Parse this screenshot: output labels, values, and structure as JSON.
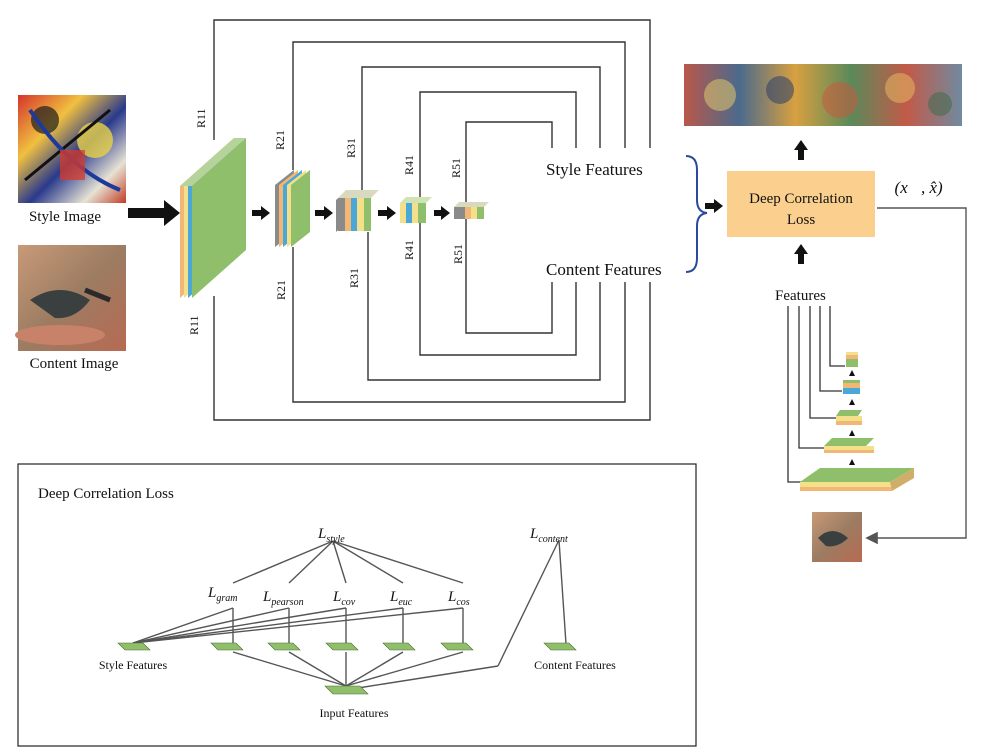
{
  "inputs": {
    "style_image_label": "Style Image",
    "content_image_label": "Content Image"
  },
  "layer_tags": {
    "r11_top": "R11",
    "r21_top": "R21",
    "r31_top": "R31",
    "r41_top": "R41",
    "r51_top": "R51",
    "r11_bot": "R11",
    "r21_bot": "R21",
    "r31_bot": "R31",
    "r41_bot": "R41",
    "r51_bot": "R51"
  },
  "features": {
    "style": "Style Features",
    "content": "Content Features",
    "generator": "Features"
  },
  "loss_box": {
    "line1": "Deep Correlation",
    "line2": "Loss",
    "formula": "ℒ(x⃗, x̂)"
  },
  "panel": {
    "title": "Deep Correlation Loss",
    "l_style": "L",
    "l_style_sub": "style",
    "l_content": "L",
    "l_content_sub": "content",
    "terms": [
      {
        "base": "L",
        "sub": "gram"
      },
      {
        "base": "L",
        "sub": "pearson"
      },
      {
        "base": "L",
        "sub": "cov"
      },
      {
        "base": "L",
        "sub": "euc"
      },
      {
        "base": "L",
        "sub": "cos"
      }
    ],
    "style_features": "Style Features",
    "content_features": "Content Features",
    "input_features": "Input Features"
  },
  "colors": {
    "green": "#8fbf6a",
    "yellow": "#f4e08a",
    "orange": "#f2b774",
    "blue": "#4aa8d8",
    "gray": "#8a8a8a",
    "loss_box": "#fbd08e"
  }
}
